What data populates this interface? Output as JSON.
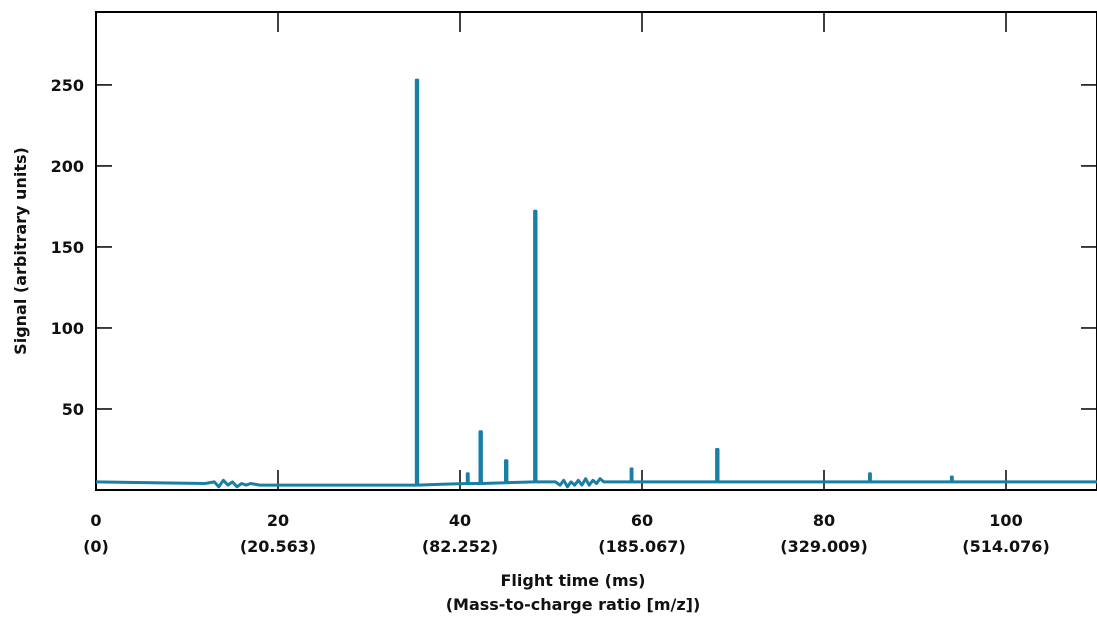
{
  "chart_data": {
    "type": "line",
    "title": "",
    "xlabel": "Flight time (ms)",
    "xlabel_secondary": "(Mass-to-charge ratio [m/z])",
    "ylabel": "Signal (arbitrary units)",
    "xlim": [
      0,
      110
    ],
    "ylim": [
      0,
      295
    ],
    "x_ticks": [
      {
        "value": 0,
        "label": "0",
        "sublabel": "(0)"
      },
      {
        "value": 20,
        "label": "20",
        "sublabel": "(20.563)"
      },
      {
        "value": 40,
        "label": "40",
        "sublabel": "(82.252)"
      },
      {
        "value": 60,
        "label": "60",
        "sublabel": "(185.067)"
      },
      {
        "value": 80,
        "label": "80",
        "sublabel": "(329.009)"
      },
      {
        "value": 100,
        "label": "100",
        "sublabel": "(514.076)"
      }
    ],
    "y_ticks": [
      {
        "value": 50,
        "label": "50"
      },
      {
        "value": 100,
        "label": "100"
      },
      {
        "value": 150,
        "label": "150"
      },
      {
        "value": 200,
        "label": "200"
      },
      {
        "value": 250,
        "label": "250"
      }
    ],
    "grid": false,
    "legend": "none",
    "line_color": "#1a7fa3",
    "series": [
      {
        "x": [
          0,
          12,
          13,
          13.5,
          14,
          14.5,
          15,
          15.5,
          16,
          16.5,
          17,
          18,
          35.2,
          35.2,
          35.35,
          35.35,
          38,
          40.8,
          40.8,
          40.9,
          40.9,
          42.2,
          42.2,
          42.35,
          42.35,
          45,
          45,
          45.15,
          45.15,
          48.2,
          48.2,
          48.35,
          48.35,
          50.5,
          51,
          51.4,
          51.8,
          52.2,
          52.6,
          53,
          53.4,
          53.8,
          54.2,
          54.6,
          55,
          55.4,
          55.8,
          56.2,
          58.8,
          58.8,
          58.9,
          58.9,
          68.2,
          68.2,
          68.35,
          68.35,
          85,
          85,
          85.1,
          85.1,
          94,
          94,
          94.1,
          94.1,
          110
        ],
        "y": [
          5,
          4,
          5,
          2,
          6,
          3,
          5,
          2,
          4,
          3,
          4,
          3,
          3,
          253,
          253,
          3,
          3.5,
          4,
          10,
          10,
          4,
          4,
          36,
          36,
          4,
          4.5,
          18,
          18,
          4.5,
          5,
          172,
          172,
          5,
          5,
          3,
          6,
          2,
          5,
          3,
          6,
          3,
          7,
          3,
          6,
          4,
          7,
          5,
          5,
          5,
          13,
          13,
          5,
          5,
          25,
          25,
          5,
          5,
          10,
          10,
          5,
          5,
          8,
          8,
          5,
          5
        ]
      }
    ]
  }
}
